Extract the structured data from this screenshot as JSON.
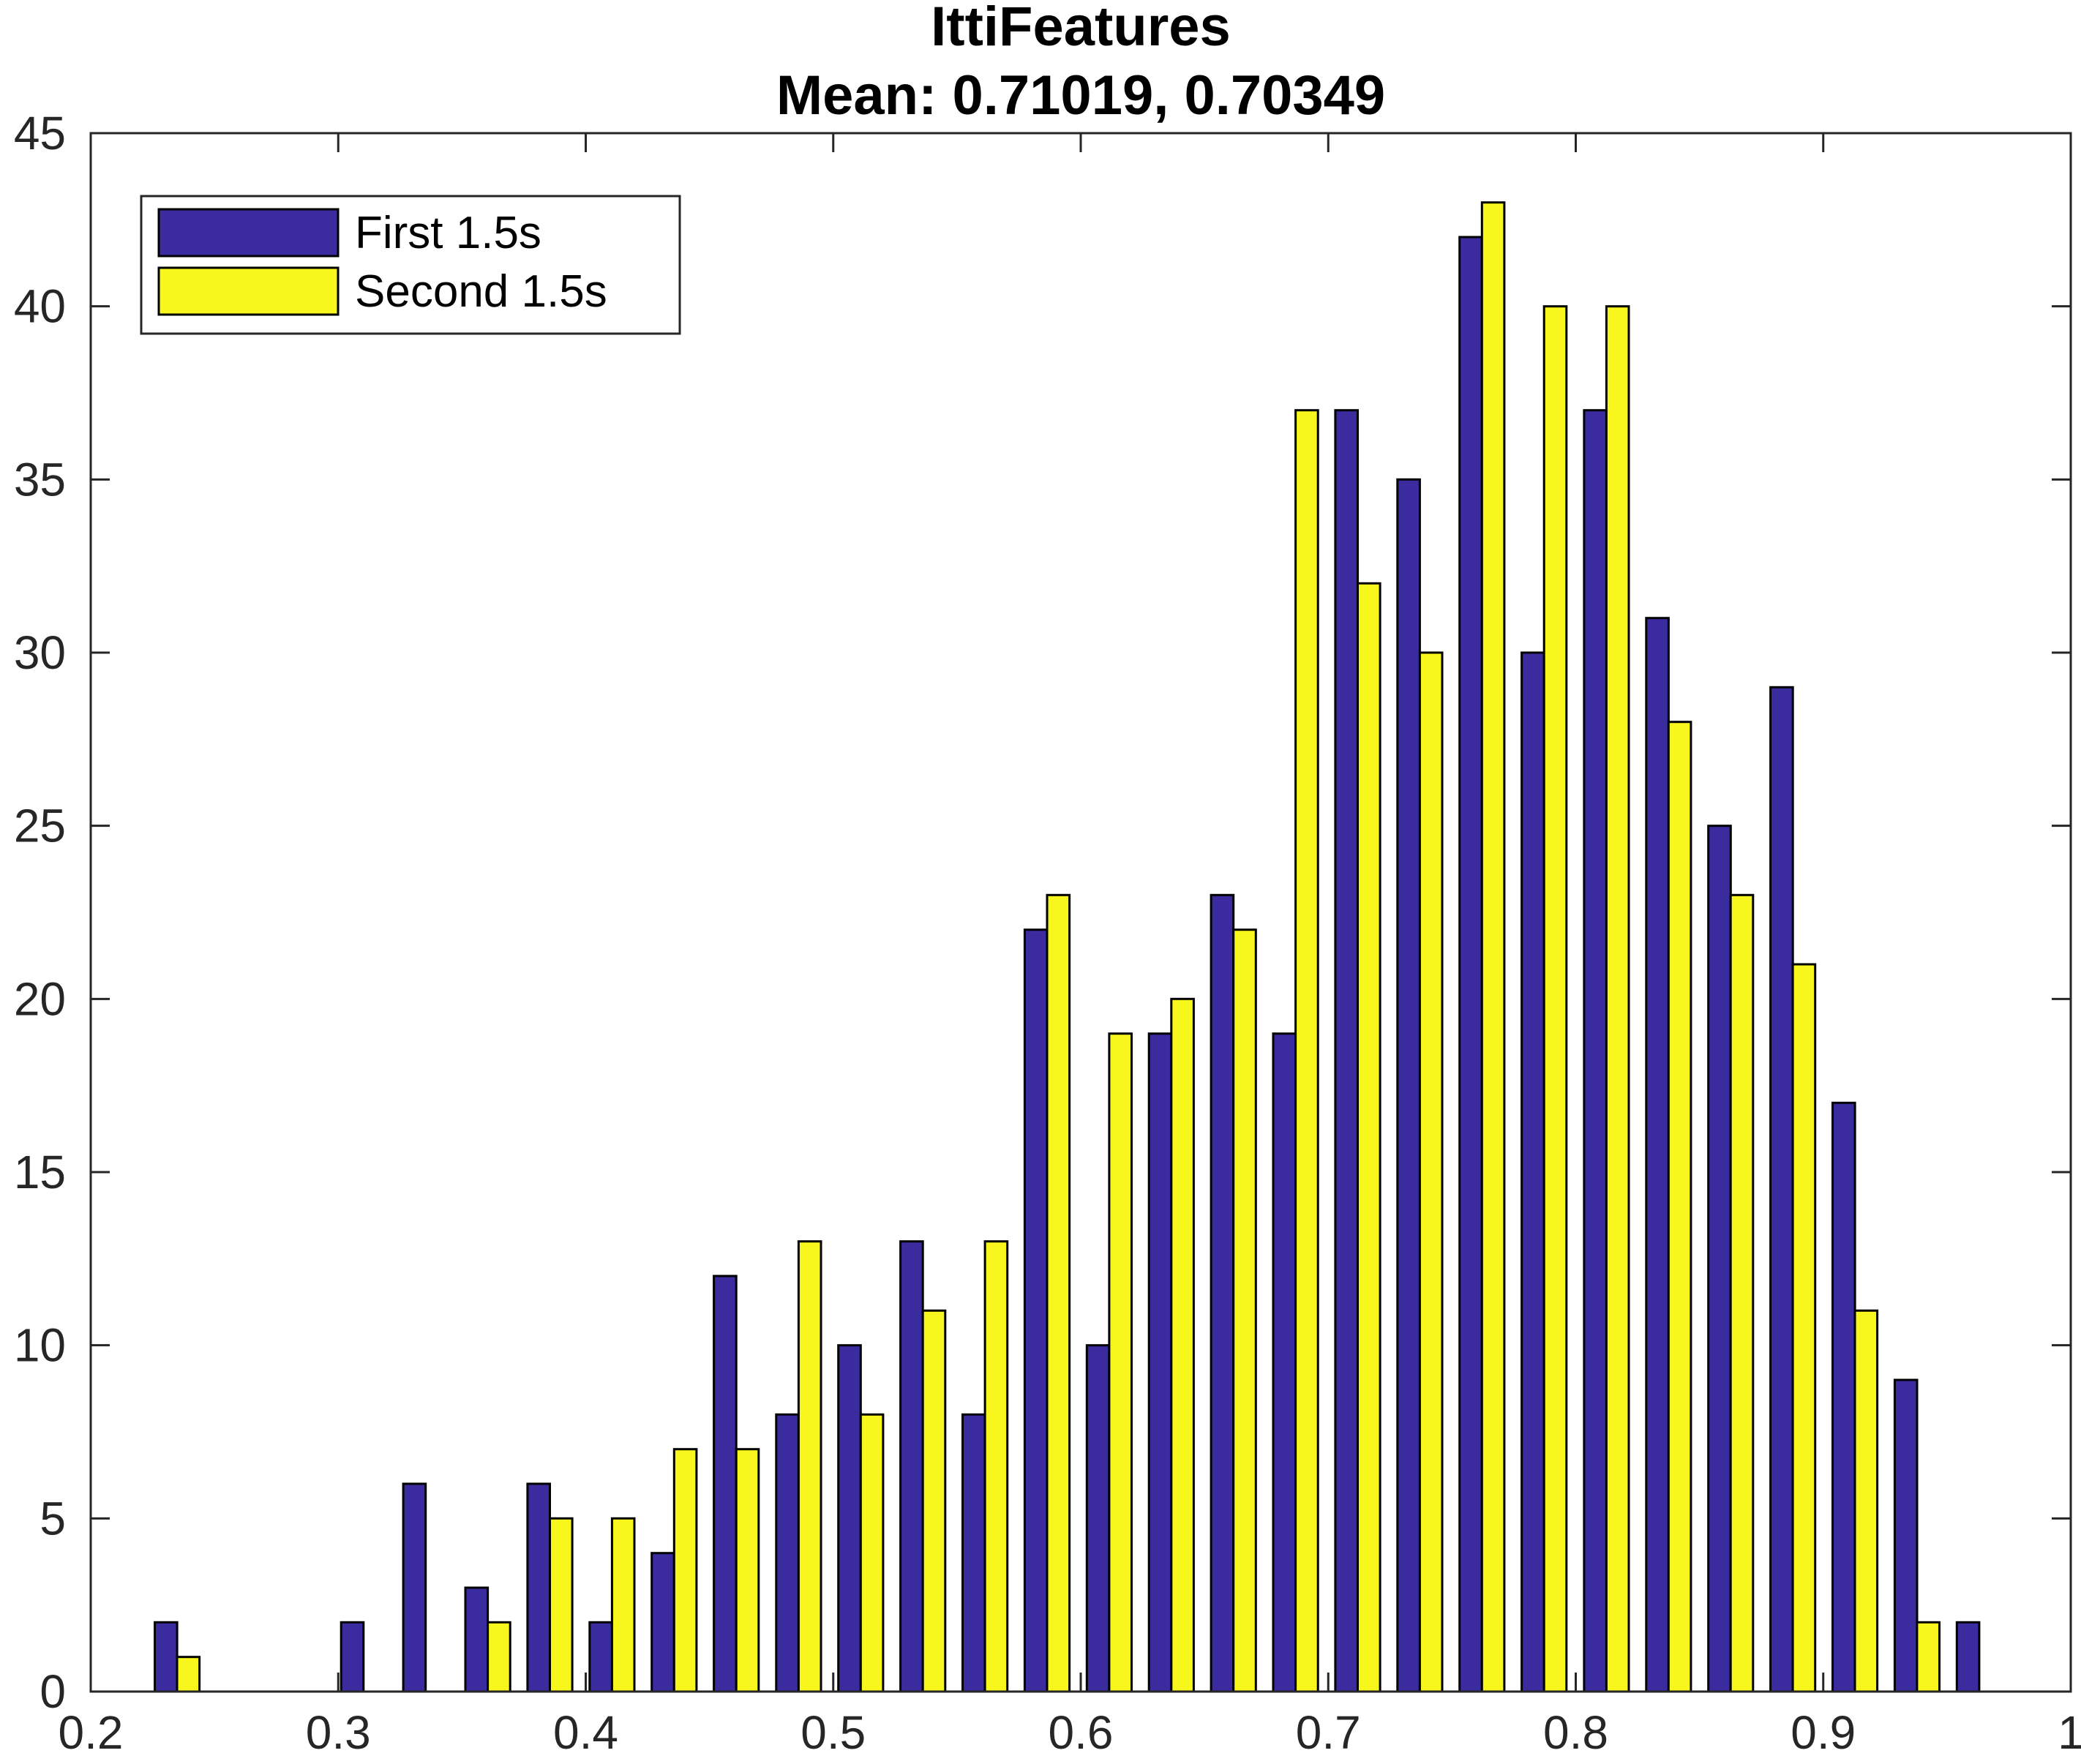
{
  "chart_data": {
    "type": "bar",
    "title": "IttiFeatures",
    "subtitle": "Mean: 0.71019, 0.70349",
    "xlabel": "",
    "ylabel": "",
    "xlim": [
      0.2,
      1
    ],
    "ylim": [
      0,
      45
    ],
    "x_ticks": [
      0.2,
      0.3,
      0.4,
      0.5,
      0.6,
      0.7,
      0.8,
      0.9,
      1
    ],
    "x_tick_labels": [
      "0.2",
      "0.3",
      "0.4",
      "0.5",
      "0.6",
      "0.7",
      "0.8",
      "0.9",
      "1"
    ],
    "y_ticks": [
      0,
      5,
      10,
      15,
      20,
      25,
      30,
      35,
      40,
      45
    ],
    "y_tick_labels": [
      "0",
      "5",
      "10",
      "15",
      "20",
      "25",
      "30",
      "35",
      "40",
      "45"
    ],
    "grid": false,
    "legend_position": "top-left",
    "bin_centers": [
      0.2349,
      0.26,
      0.285,
      0.3102,
      0.3353,
      0.3604,
      0.3855,
      0.4106,
      0.4357,
      0.4608,
      0.486,
      0.5111,
      0.5362,
      0.5613,
      0.5864,
      0.6115,
      0.6366,
      0.6617,
      0.6868,
      0.7119,
      0.737,
      0.7621,
      0.7872,
      0.8124,
      0.8375,
      0.8626,
      0.8877,
      0.9128,
      0.9379,
      0.963
    ],
    "series": [
      {
        "name": "First 1.5s",
        "color": "#3a2b9e",
        "values": [
          2,
          0,
          0,
          2,
          6,
          3,
          6,
          2,
          4,
          12,
          8,
          10,
          13,
          8,
          22,
          10,
          19,
          23,
          19,
          37,
          35,
          42,
          30,
          37,
          31,
          25,
          29,
          17,
          9,
          2
        ]
      },
      {
        "name": "Second 1.5s",
        "color": "#f7f71e",
        "values": [
          1,
          0,
          0,
          0,
          0,
          2,
          5,
          5,
          7,
          7,
          13,
          8,
          11,
          13,
          23,
          19,
          20,
          22,
          37,
          32,
          30,
          43,
          40,
          40,
          28,
          23,
          21,
          11,
          2,
          0
        ]
      }
    ]
  }
}
